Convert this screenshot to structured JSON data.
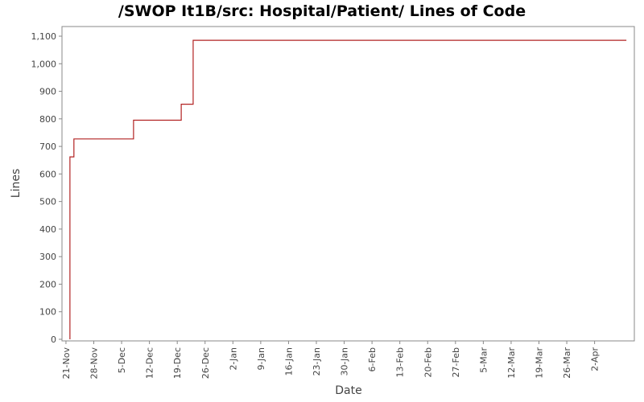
{
  "chart_data": {
    "type": "line",
    "title": "/SWOP It1B/src: Hospital/Patient/ Lines of Code",
    "xlabel": "Date",
    "ylabel": "Lines",
    "ylim": [
      0,
      1125
    ],
    "y_ticks": [
      0,
      100,
      200,
      300,
      400,
      500,
      600,
      700,
      800,
      900,
      1000,
      1100
    ],
    "y_tick_labels": [
      "0",
      "100",
      "200",
      "300",
      "400",
      "500",
      "600",
      "700",
      "800",
      "900",
      "1,000",
      "1,100"
    ],
    "xlim": [
      "2007-11-20",
      "2008-04-12"
    ],
    "x_ticks": [
      "2007-11-21",
      "2007-11-28",
      "2007-12-05",
      "2007-12-12",
      "2007-12-19",
      "2007-12-26",
      "2008-01-02",
      "2008-01-09",
      "2008-01-16",
      "2008-01-23",
      "2008-01-30",
      "2008-02-06",
      "2008-02-13",
      "2008-02-20",
      "2008-02-27",
      "2008-03-05",
      "2008-03-12",
      "2008-03-19",
      "2008-03-26",
      "2008-04-02"
    ],
    "x_tick_labels": [
      "21-Nov",
      "28-Nov",
      "5-Dec",
      "12-Dec",
      "19-Dec",
      "26-Dec",
      "2-Jan",
      "9-Jan",
      "16-Jan",
      "23-Jan",
      "30-Jan",
      "6-Feb",
      "13-Feb",
      "20-Feb",
      "27-Feb",
      "5-Mar",
      "12-Mar",
      "19-Mar",
      "26-Mar",
      "2-Apr"
    ],
    "grid": false,
    "step": true,
    "color": "#b22222",
    "series": [
      {
        "x": [
          "2007-11-22",
          "2007-11-22",
          "2007-11-23",
          "2007-12-08",
          "2007-12-20",
          "2007-12-23",
          "2008-04-10"
        ],
        "y": [
          0,
          662,
          727,
          795,
          853,
          1085,
          1085
        ]
      }
    ]
  }
}
